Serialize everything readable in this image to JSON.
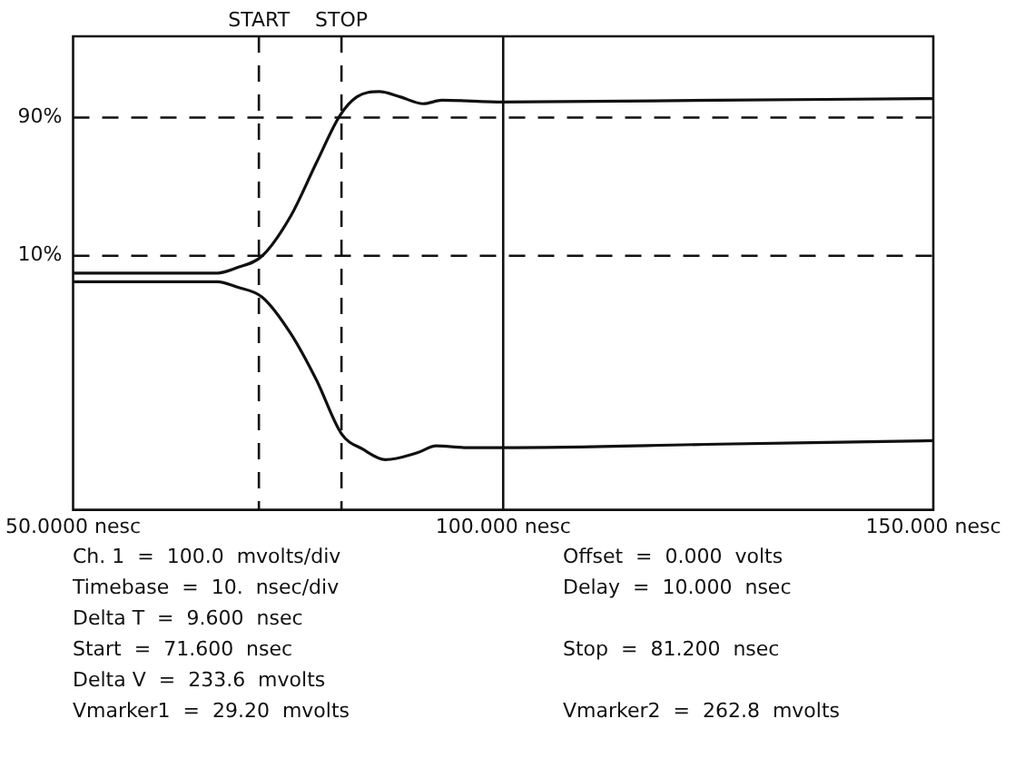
{
  "chart_data": {
    "type": "line",
    "xlim": [
      50,
      150
    ],
    "xticks": [
      {
        "value": 50,
        "label": "50.0000 nesc"
      },
      {
        "value": 100,
        "label": "100.000 nesc"
      },
      {
        "value": 150,
        "label": "150.000 nesc"
      }
    ],
    "ylim": [
      -137,
      137
    ],
    "yticks": [
      {
        "value": 90,
        "label": "90%"
      },
      {
        "value": 10,
        "label": "10%"
      }
    ],
    "grid": false,
    "legend": false,
    "marker": "none",
    "line_style": "solid",
    "series": [
      {
        "color": "#111111",
        "x": [
          50,
          60,
          66.8,
          69,
          72,
          75.3,
          78.3,
          81,
          83,
          85.6,
          88,
          90.7,
          92.9,
          100,
          125,
          150
        ],
        "values": [
          0,
          0,
          0,
          3,
          10,
          33,
          64,
          91,
          102,
          105,
          102,
          98,
          100,
          99,
          100,
          101
        ]
      },
      {
        "color": "#111111",
        "x": [
          50,
          60,
          66.8,
          69,
          72,
          75.3,
          78.3,
          81.2,
          83.7,
          86.3,
          90,
          92.2,
          95.8,
          100,
          125,
          150
        ],
        "values": [
          -5,
          -5,
          -5,
          -8,
          -14,
          -35,
          -62,
          -93,
          -102,
          -108,
          -104,
          -100,
          -101,
          -101,
          -99,
          -97
        ]
      }
    ],
    "ref_lines": [
      {
        "axis": "y",
        "value": 90,
        "label": null,
        "line_style": "dashed"
      },
      {
        "axis": "y",
        "value": 10,
        "label": null,
        "line_style": "dashed"
      },
      {
        "axis": "x",
        "value": 71.6,
        "label": "START",
        "line_style": "dashed"
      },
      {
        "axis": "x",
        "value": 81.2,
        "label": "STOP",
        "line_style": "dashed"
      },
      {
        "axis": "x",
        "value": 100,
        "label": null,
        "line_style": "solid"
      }
    ],
    "annotations": [
      "Ch. 1  =  100.0  mvolts/div",
      "Timebase  =  10.  nsec/div",
      "Delta T  =  9.600  nsec",
      "Start  =  71.600  nsec",
      "Delta V  =  233.6  mvolts",
      "Vmarker1  =  29.20  mvolts",
      "Offset  =  0.000  volts",
      "Delay  =  10.000  nsec",
      "Stop  =  81.200  nsec",
      "Vmarker2  =  262.8  mvolts"
    ]
  }
}
